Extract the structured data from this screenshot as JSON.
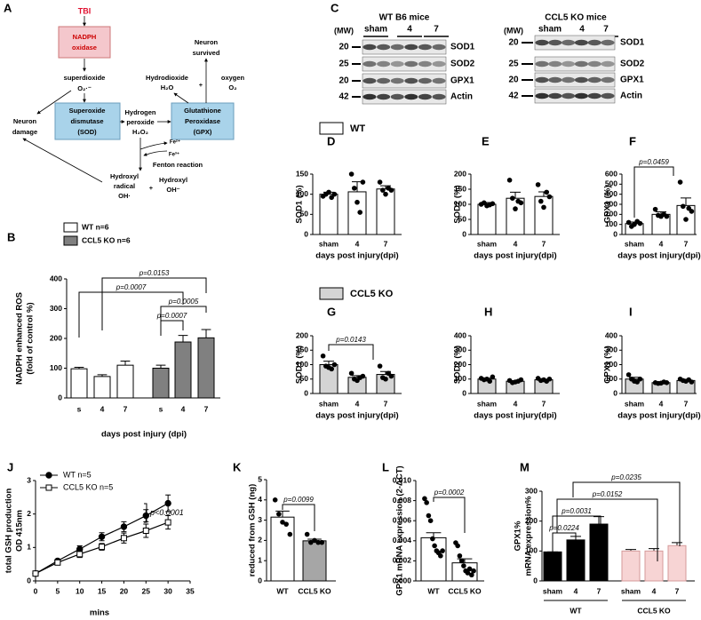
{
  "diagram": {
    "panel": "A",
    "texts": [
      "TBI",
      "NADPH",
      "oxidase",
      "superdioxide",
      "O₂·⁻",
      "Neuron",
      "damage",
      "Superoxide",
      "dismutase",
      "(SOD)",
      "Hydrogen",
      "peroxide",
      "H₂O₂",
      "Glutathione",
      "Peroxidase",
      "(GPX)",
      "Neuron",
      "survived",
      "Hydrodioxide",
      "H₂O",
      "+",
      "oxygen",
      "O₂",
      "Fe²⁺",
      "Fe³⁺",
      "Fenton reaction",
      "Hydroxyl",
      "radical",
      "OH·",
      "+",
      "Hydroxyl",
      "OH⁻"
    ]
  },
  "blots": {
    "panel": "C",
    "groups": [
      {
        "title": "WT B6 mice",
        "mw_header": "(MW)",
        "lanes": [
          "sham",
          "4",
          "7"
        ],
        "markers": [
          "20",
          "25",
          "20",
          "42"
        ],
        "proteins": [
          "SOD1",
          "SOD2",
          "GPX1",
          "Actin"
        ]
      },
      {
        "title": "CCL5 KO mice",
        "mw_header": "(MW)",
        "lanes": [
          "sham",
          "4",
          "7"
        ],
        "markers": [
          "20",
          "25",
          "20",
          "42"
        ],
        "proteins": [
          "SOD1",
          "SOD2",
          "GPX1",
          "Actin"
        ]
      }
    ]
  },
  "legends": [
    {
      "name": "WT",
      "color": "#ffffff"
    },
    {
      "name": "CCL5 KO",
      "color": "#d4d4d4"
    }
  ],
  "chart_data": [
    {
      "panel": "B",
      "type": "bar",
      "categories": [
        "s",
        "4",
        "7",
        "s",
        "4",
        "7"
      ],
      "series": [
        {
          "name": "WT n=6",
          "color": "#ffffff",
          "values": [
            98,
            72,
            110,
            null,
            null,
            null
          ],
          "errors": [
            5,
            6,
            14,
            null,
            null,
            null
          ]
        },
        {
          "name": "CCL5 KO n=6",
          "color": "#808080",
          "values": [
            null,
            null,
            null,
            100,
            188,
            202
          ],
          "errors": [
            null,
            null,
            null,
            10,
            22,
            28
          ]
        }
      ],
      "ylim": [
        0,
        400
      ],
      "yticks": [
        0,
        100,
        200,
        300,
        400
      ],
      "ylabel": [
        "NADPH enhanced ROS",
        "(fold of control %)"
      ],
      "xlabel": "days post injury (dpi)",
      "annotations": [
        "p=0.0153",
        "p=0.0007",
        "p=0.0005",
        "p=0.0007"
      ]
    },
    {
      "panel": "D",
      "type": "bar",
      "categories": [
        "sham",
        "4",
        "7"
      ],
      "values": [
        100,
        106,
        113
      ],
      "errors": [
        5,
        25,
        8
      ],
      "points": [
        [
          95,
          100,
          105,
          92,
          100
        ],
        [
          150,
          115,
          80,
          55,
          130
        ],
        [
          130,
          110,
          100,
          115,
          110
        ]
      ],
      "color": "#ffffff",
      "ylim": [
        0,
        150
      ],
      "yticks": [
        0,
        50,
        100,
        150
      ],
      "ylabel": "SOD1 (%)",
      "xlabel": "days post injury(dpi)"
    },
    {
      "panel": "E",
      "type": "bar",
      "categories": [
        "sham",
        "4",
        "7"
      ],
      "values": [
        100,
        120,
        126
      ],
      "errors": [
        6,
        20,
        15
      ],
      "points": [
        [
          100,
          105,
          95,
          98,
          102
        ],
        [
          180,
          120,
          85,
          110,
          105
        ],
        [
          165,
          110,
          90,
          140,
          125
        ]
      ],
      "color": "#ffffff",
      "ylim": [
        0,
        200
      ],
      "yticks": [
        0,
        50,
        100,
        150,
        200
      ],
      "ylabel": "SOD2 (%)",
      "xlabel": "days post injury(dpi)"
    },
    {
      "panel": "F",
      "type": "bar",
      "categories": [
        "sham",
        "4",
        "7"
      ],
      "values": [
        108,
        200,
        288
      ],
      "errors": [
        15,
        25,
        75
      ],
      "points": [
        [
          120,
          80,
          100,
          130,
          110
        ],
        [
          250,
          190,
          180,
          200,
          180
        ],
        [
          520,
          280,
          150,
          260,
          230
        ]
      ],
      "color": "#ffffff",
      "ylim": [
        0,
        600
      ],
      "yticks": [
        0,
        100,
        200,
        300,
        400,
        500,
        600
      ],
      "ylabel": "GPX1 (%)",
      "xlabel": "days post injury(dpi)",
      "annotations": [
        "p=0.0459"
      ]
    },
    {
      "panel": "G",
      "type": "bar",
      "categories": [
        "sham",
        "4",
        "7"
      ],
      "values": [
        100,
        56,
        66
      ],
      "errors": [
        12,
        6,
        10
      ],
      "points": [
        [
          130,
          95,
          90,
          85,
          100
        ],
        [
          70,
          50,
          45,
          55,
          60
        ],
        [
          95,
          55,
          50,
          70,
          60
        ]
      ],
      "color": "#d4d4d4",
      "ylim": [
        0,
        200
      ],
      "yticks": [
        0,
        50,
        100,
        150,
        200
      ],
      "ylabel": "SOD1 (%)",
      "xlabel": "days post injury(dpi)",
      "annotations": [
        "p=0.0143"
      ]
    },
    {
      "panel": "H",
      "type": "bar",
      "categories": [
        "sham",
        "4",
        "7"
      ],
      "values": [
        100,
        85,
        95
      ],
      "errors": [
        6,
        4,
        4
      ],
      "points": [
        [
          105,
          95,
          100,
          85,
          115
        ],
        [
          90,
          75,
          80,
          85,
          95
        ],
        [
          105,
          90,
          95,
          85,
          100
        ]
      ],
      "color": "#d4d4d4",
      "ylim": [
        0,
        400
      ],
      "yticks": [
        0,
        100,
        200,
        300,
        400
      ],
      "ylabel": "SOD2 (%)",
      "xlabel": "days post injury(dpi)"
    },
    {
      "panel": "I",
      "type": "bar",
      "categories": [
        "sham",
        "4",
        "7"
      ],
      "values": [
        100,
        75,
        90
      ],
      "errors": [
        12,
        2,
        5
      ],
      "points": [
        [
          130,
          100,
          85,
          80,
          100
        ],
        [
          75,
          70,
          72,
          80,
          75
        ],
        [
          100,
          90,
          85,
          95,
          80
        ]
      ],
      "color": "#d4d4d4",
      "ylim": [
        0,
        400
      ],
      "yticks": [
        0,
        100,
        200,
        300,
        400
      ],
      "ylabel": "GPX1 (%)",
      "xlabel": "days post injury(dpi)"
    },
    {
      "panel": "J",
      "type": "line",
      "x": [
        0,
        5,
        10,
        15,
        20,
        25,
        30
      ],
      "series": [
        {
          "name": "WT n=5",
          "color": "#000000",
          "marker": "circle",
          "values": [
            0.22,
            0.6,
            0.95,
            1.32,
            1.62,
            1.95,
            2.32
          ],
          "errors": [
            0.03,
            0.05,
            0.1,
            0.12,
            0.15,
            0.18,
            0.25
          ]
        },
        {
          "name": "CCL5 KO n=5",
          "color": "#ffffff",
          "marker": "square",
          "values": [
            0.22,
            0.55,
            0.8,
            1.02,
            1.28,
            1.5,
            1.75
          ],
          "errors": [
            0.03,
            0.05,
            0.1,
            0.1,
            0.15,
            0.2,
            0.2
          ]
        }
      ],
      "xlim": [
        0,
        35
      ],
      "xticks": [
        0,
        5,
        10,
        15,
        20,
        25,
        30,
        35
      ],
      "ylim": [
        0,
        3
      ],
      "yticks": [
        0,
        1,
        2,
        3
      ],
      "ylabel": [
        "total GSH production",
        "OD 415nm"
      ],
      "xlabel": "mins",
      "annotations": [
        "p<0.0001"
      ]
    },
    {
      "panel": "K",
      "type": "bar",
      "categories": [
        "WT",
        "CCL5  KO"
      ],
      "values": [
        3.15,
        1.98
      ],
      "errors": [
        0.3,
        0.08
      ],
      "points": [
        [
          4.0,
          3.3,
          2.9,
          2.8,
          2.3
        ],
        [
          2.3,
          1.9,
          2.0,
          1.9,
          1.9
        ]
      ],
      "colors": [
        "#ffffff",
        "#a6a6a6"
      ],
      "ylim": [
        0,
        5
      ],
      "yticks": [
        0,
        1,
        2,
        3,
        4,
        5
      ],
      "ylabel": "reduced from GSH (ng)",
      "annotations": [
        "p=0.0099"
      ]
    },
    {
      "panel": "L",
      "type": "bar",
      "categories": [
        "WT",
        "CCL5 KO"
      ],
      "values": [
        0.0043,
        0.0018
      ],
      "errors": [
        0.0005,
        0.0004
      ],
      "points": [
        [
          0.0082,
          0.0078,
          0.0065,
          0.006,
          0.0042,
          0.0035,
          0.003,
          0.0028,
          0.0025,
          0.003
        ],
        [
          0.0038,
          0.0035,
          0.0025,
          0.002,
          0.0015,
          0.001,
          0.0008,
          0.0012,
          0.0006,
          0.001
        ]
      ],
      "colors": [
        "#ffffff",
        "#ffffff"
      ],
      "ylim": [
        0,
        0.01
      ],
      "yticks": [
        {
          "value": 0,
          "label": "0.000"
        },
        {
          "value": 0.002,
          "label": "0.002"
        },
        {
          "value": 0.004,
          "label": "0.004"
        },
        {
          "value": 0.006,
          "label": "0.006"
        },
        {
          "value": 0.008,
          "label": "0.008"
        },
        {
          "value": 0.01,
          "label": "0.010"
        }
      ],
      "ylabel": "GPX1 mRNA expression (2-ΔCT)",
      "annotations": [
        "p=0.0002"
      ]
    },
    {
      "panel": "M",
      "type": "bar",
      "categories": [
        "sham",
        "4",
        "7",
        "sham",
        "4",
        "7"
      ],
      "values": [
        97,
        137,
        190,
        100,
        100,
        118
      ],
      "errors": [
        0,
        12,
        25,
        5,
        8,
        10
      ],
      "colors": [
        "#000000",
        "#000000",
        "#000000",
        "#f7d4d4",
        "#f7d4d4",
        "#f7d4d4"
      ],
      "ylim": [
        0,
        300
      ],
      "yticks": [
        0,
        100,
        200,
        300
      ],
      "ylabel": [
        "GPX1%",
        "mRNA expression%"
      ],
      "group_labels": [
        "WT",
        "CCL5 KO"
      ],
      "annotations": [
        "p=0.0235",
        "p=0.0152",
        "p=0.0031",
        "p=0.0224"
      ]
    }
  ]
}
